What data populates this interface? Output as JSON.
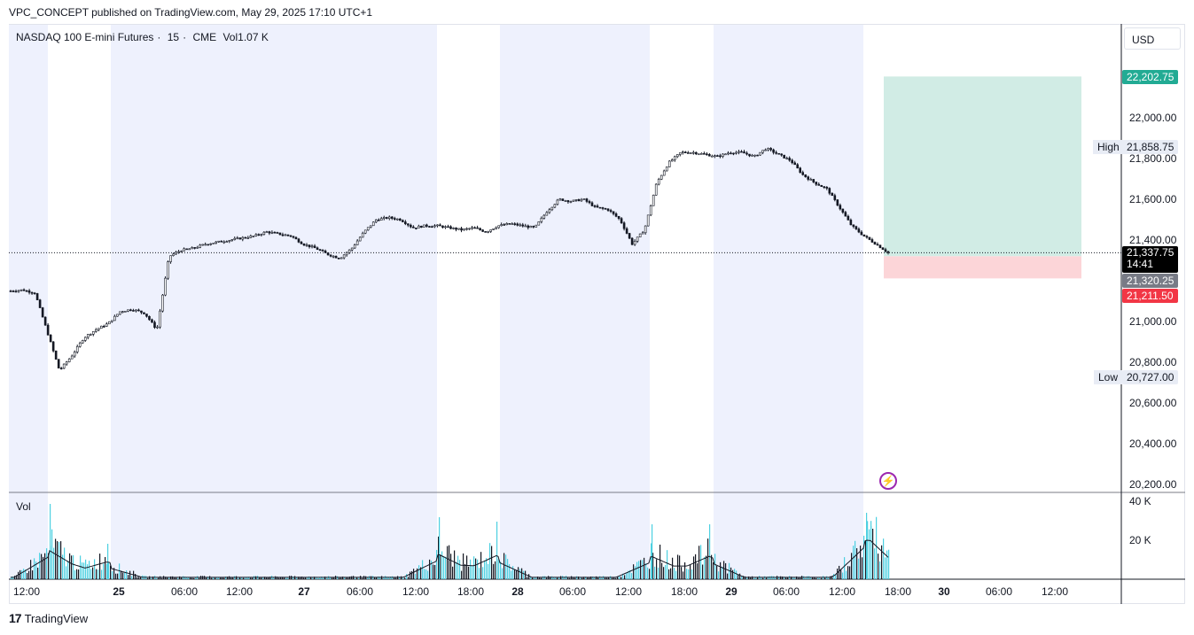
{
  "header": {
    "publisher_line": "VPC_CONCEPT published on TradingView.com, May 29, 2025 17:10 UTC+1"
  },
  "legend": {
    "symbol": "NASDAQ 100 E-mini Futures",
    "interval": "15",
    "exchange": "CME",
    "sep": "·",
    "vol_label": "Vol",
    "vol_value": "1.07 K"
  },
  "currency_button": "USD",
  "volume_pane_label": "Vol",
  "brand": "TradingView",
  "price_axis": {
    "ticks": [
      "22,000.00",
      "21,800.00",
      "21,600.00",
      "21,400.00",
      "21,000.00",
      "20,800.00",
      "20,600.00",
      "20,400.00",
      "20,200.00"
    ],
    "tick_values": [
      22000,
      21800,
      21600,
      21400,
      21000,
      20800,
      20600,
      20400,
      20200
    ]
  },
  "price_tags": {
    "target": {
      "label": "22,202.75",
      "value": 22202.75,
      "color": "#22ab94"
    },
    "high": {
      "label": "21,858.75",
      "tag": "High",
      "value": 21858.75
    },
    "last": {
      "label": "21,337.75",
      "countdown": "14:41",
      "value": 21337.75
    },
    "entry": {
      "label": "21,320.25",
      "value": 21320.25,
      "color": "#787b86"
    },
    "stop": {
      "label": "21,211.50",
      "value": 21211.5,
      "color": "#f23645"
    },
    "low": {
      "label": "20,727.00",
      "tag": "Low",
      "value": 20727.0
    }
  },
  "volume_axis": [
    "40 K",
    "20 K"
  ],
  "time_axis": [
    {
      "label": "12:00",
      "bold": false
    },
    {
      "label": "25",
      "bold": true
    },
    {
      "label": "06:00",
      "bold": false
    },
    {
      "label": "12:00",
      "bold": false
    },
    {
      "label": "27",
      "bold": true
    },
    {
      "label": "06:00",
      "bold": false
    },
    {
      "label": "12:00",
      "bold": false
    },
    {
      "label": "18:00",
      "bold": false
    },
    {
      "label": "28",
      "bold": true
    },
    {
      "label": "06:00",
      "bold": false
    },
    {
      "label": "12:00",
      "bold": false
    },
    {
      "label": "18:00",
      "bold": false
    },
    {
      "label": "29",
      "bold": true
    },
    {
      "label": "06:00",
      "bold": false
    },
    {
      "label": "12:00",
      "bold": false
    },
    {
      "label": "18:00",
      "bold": false
    },
    {
      "label": "30",
      "bold": true
    },
    {
      "label": "06:00",
      "bold": false
    },
    {
      "label": "12:00",
      "bold": false
    }
  ],
  "colors": {
    "session_shade": "#eef1fd",
    "profit_zone": "#d1ece5",
    "loss_zone": "#fcd5d8",
    "volume_up": "#4dd0e1",
    "volume_ma": "#131722"
  },
  "chart_data": {
    "type": "line",
    "title": "NASDAQ 100 E-mini Futures · 15 · CME",
    "ylabel": "USD",
    "ylim": [
      20150,
      22350
    ],
    "series": [
      {
        "values": [
          21150,
          21155,
          21140,
          20950,
          20760,
          20830,
          20920,
          20960,
          20990,
          21050,
          21060,
          21040,
          20960,
          21320,
          21350,
          21360,
          21380,
          21390,
          21400,
          21410,
          21420,
          21440,
          21430,
          21420,
          21380,
          21360,
          21330,
          21310,
          21360,
          21440,
          21500,
          21510,
          21500,
          21460,
          21470,
          21470,
          21460,
          21450,
          21460,
          21440,
          21470,
          21480,
          21470,
          21460,
          21540,
          21600,
          21590,
          21600,
          21560,
          21550,
          21500,
          21380,
          21450,
          21680,
          21780,
          21830,
          21830,
          21820,
          21810,
          21830,
          21830,
          21810,
          21850,
          21820,
          21790,
          21720,
          21680,
          21650,
          21560,
          21470,
          21420,
          21380,
          21338
        ]
      }
    ],
    "trade": {
      "target": 22202.75,
      "entry": 21320.25,
      "stop": 21211.5
    }
  }
}
